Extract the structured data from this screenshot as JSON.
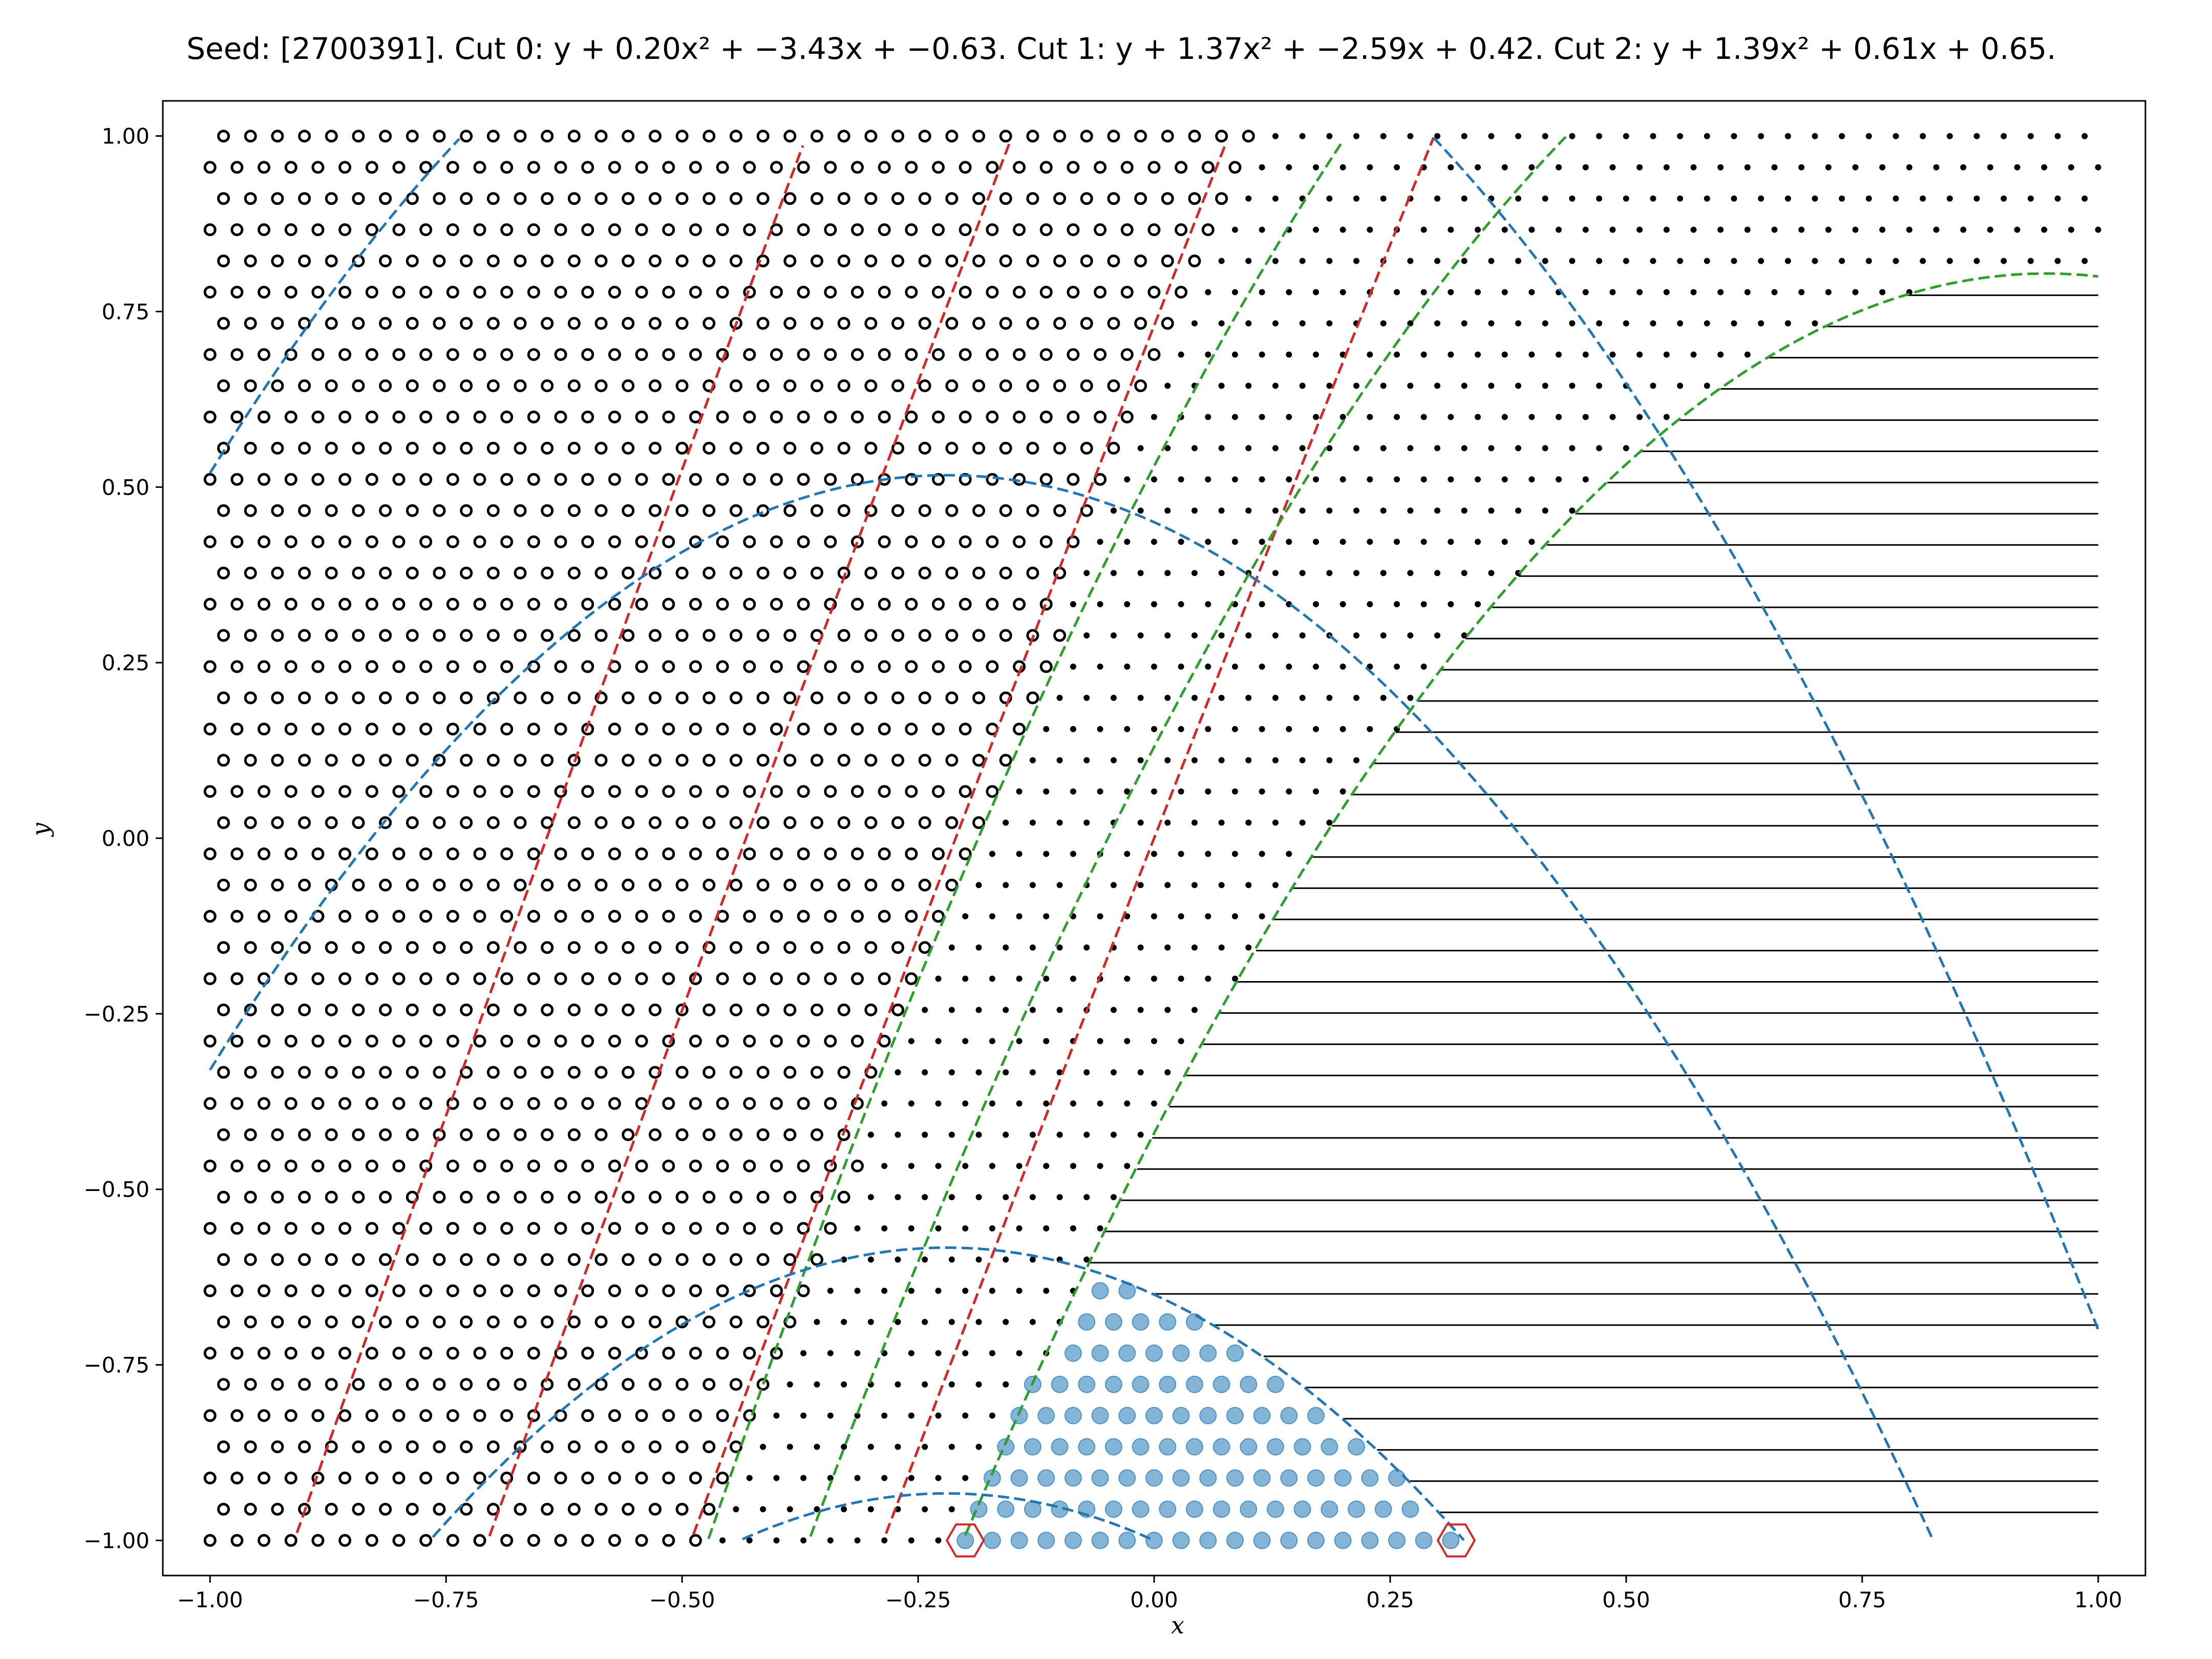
{
  "chart_data": {
    "type": "scatter",
    "title": "Seed: [2700391]. Cut 0: y + 0.20x² + −3.43x + −0.63. Cut 1: y + 1.37x² + −2.59x + 0.42. Cut 2: y + 1.39x² + 0.61x + 0.65.",
    "xlabel": "x",
    "ylabel": "y",
    "xlim": [
      -1.05,
      1.05
    ],
    "ylim": [
      -1.05,
      1.05
    ],
    "x_ticks": [
      -1.0,
      -0.75,
      -0.5,
      -0.25,
      0.0,
      0.25,
      0.5,
      0.75,
      1.0
    ],
    "x_tick_labels": [
      "−1.00",
      "−0.75",
      "−0.50",
      "−0.25",
      "0.00",
      "0.25",
      "0.50",
      "0.75",
      "1.00"
    ],
    "y_ticks": [
      -1.0,
      -0.75,
      -0.5,
      -0.25,
      0.0,
      0.25,
      0.5,
      0.75,
      1.0
    ],
    "y_tick_labels": [
      "−1.00",
      "−0.75",
      "−0.50",
      "−0.25",
      "0.00",
      "0.25",
      "0.50",
      "0.75",
      "1.00"
    ],
    "grid": false,
    "cuts": [
      {
        "a": 0.2,
        "b": -3.43,
        "c": -0.63,
        "color": "#d62728"
      },
      {
        "a": 1.37,
        "b": -2.59,
        "c": 0.42,
        "color": "#2ca02c"
      },
      {
        "a": 1.39,
        "b": 0.61,
        "c": 0.65,
        "color": "#1f77b4"
      }
    ],
    "region_styles": {
      "cut0_side": "open-circle",
      "cut1_side": "dot",
      "cut2_outside": "hatch-lines",
      "cut2_inside": "filled-blue-circle"
    },
    "marker_color": "#1f77b4",
    "highlight_points": [
      {
        "x": -0.2,
        "y": -1.0
      },
      {
        "x": 0.32,
        "y": -1.0
      }
    ],
    "highlight_color": "#d62728",
    "grid_points": {
      "x_start": -1.0,
      "x_end": 1.0,
      "x_step": 0.02857,
      "y_start": -1.0,
      "y_end": 1.0,
      "y_step": 0.04444,
      "row_offset": 0.5
    }
  }
}
